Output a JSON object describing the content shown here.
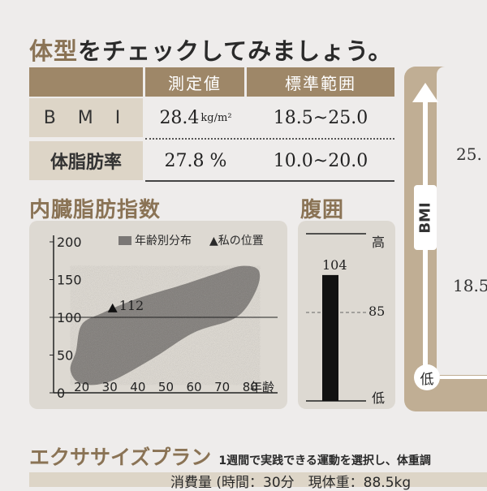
{
  "header": {
    "title_part1": "体型",
    "title_part2": "をチェックしてみましょう。"
  },
  "table": {
    "col_measured": "測定値",
    "col_standard": "標準範囲",
    "rows": [
      {
        "label": "B M I",
        "value": "28.4",
        "unit": "kg/m²",
        "range": "18.5~25.0"
      },
      {
        "label": "体脂肪率",
        "value": "27.8 %",
        "unit": "",
        "range": "10.0~20.0"
      }
    ]
  },
  "visceral": {
    "title": "内臓脂肪指数",
    "legend_distribution": "年齢別分布",
    "legend_position": "▲私の位置",
    "my_value_label": "112",
    "x_axis_label": "年齢",
    "colors": {
      "blob": "#8f8c89",
      "panel": "#ddd9d2"
    }
  },
  "chart_data": {
    "type": "scatter",
    "title": "内臓脂肪指数",
    "xlabel": "年齢",
    "ylabel": "",
    "x_ticks": [
      "20",
      "30",
      "40",
      "50",
      "60",
      "70",
      "80"
    ],
    "y_ticks": [
      "0",
      "50",
      "100",
      "150",
      "200"
    ],
    "xlim": [
      10,
      88
    ],
    "ylim": [
      0,
      200
    ],
    "reference_line_y": 100,
    "series": [
      {
        "name": "私の位置",
        "points": [
          {
            "x": 31,
            "y": 112
          }
        ]
      }
    ],
    "distribution_outline": [
      {
        "x": 18,
        "y": 55
      },
      {
        "x": 20,
        "y": 90
      },
      {
        "x": 27,
        "y": 105
      },
      {
        "x": 40,
        "y": 125
      },
      {
        "x": 55,
        "y": 142
      },
      {
        "x": 68,
        "y": 158
      },
      {
        "x": 77,
        "y": 168
      },
      {
        "x": 83,
        "y": 162
      },
      {
        "x": 82,
        "y": 135
      },
      {
        "x": 75,
        "y": 100
      },
      {
        "x": 60,
        "y": 80
      },
      {
        "x": 45,
        "y": 45
      },
      {
        "x": 30,
        "y": 15
      },
      {
        "x": 20,
        "y": 12
      },
      {
        "x": 16,
        "y": 30
      }
    ]
  },
  "waist": {
    "title": "腹囲",
    "label_high": "高",
    "label_low": "低",
    "value": 104,
    "value_label": "104",
    "reference": 85,
    "reference_label": "85",
    "min": 40,
    "max": 125
  },
  "bmi_panel": {
    "label": "BMI",
    "low_label": "低",
    "value_top": "25.",
    "value_mid": "18.5"
  },
  "exercise": {
    "title": "エクササイズプラン",
    "subtitle": "1週間で実践できる運動を選択し、体重調",
    "bottom_line": "消費量 (時間：30分　現体重：88.5kg"
  }
}
